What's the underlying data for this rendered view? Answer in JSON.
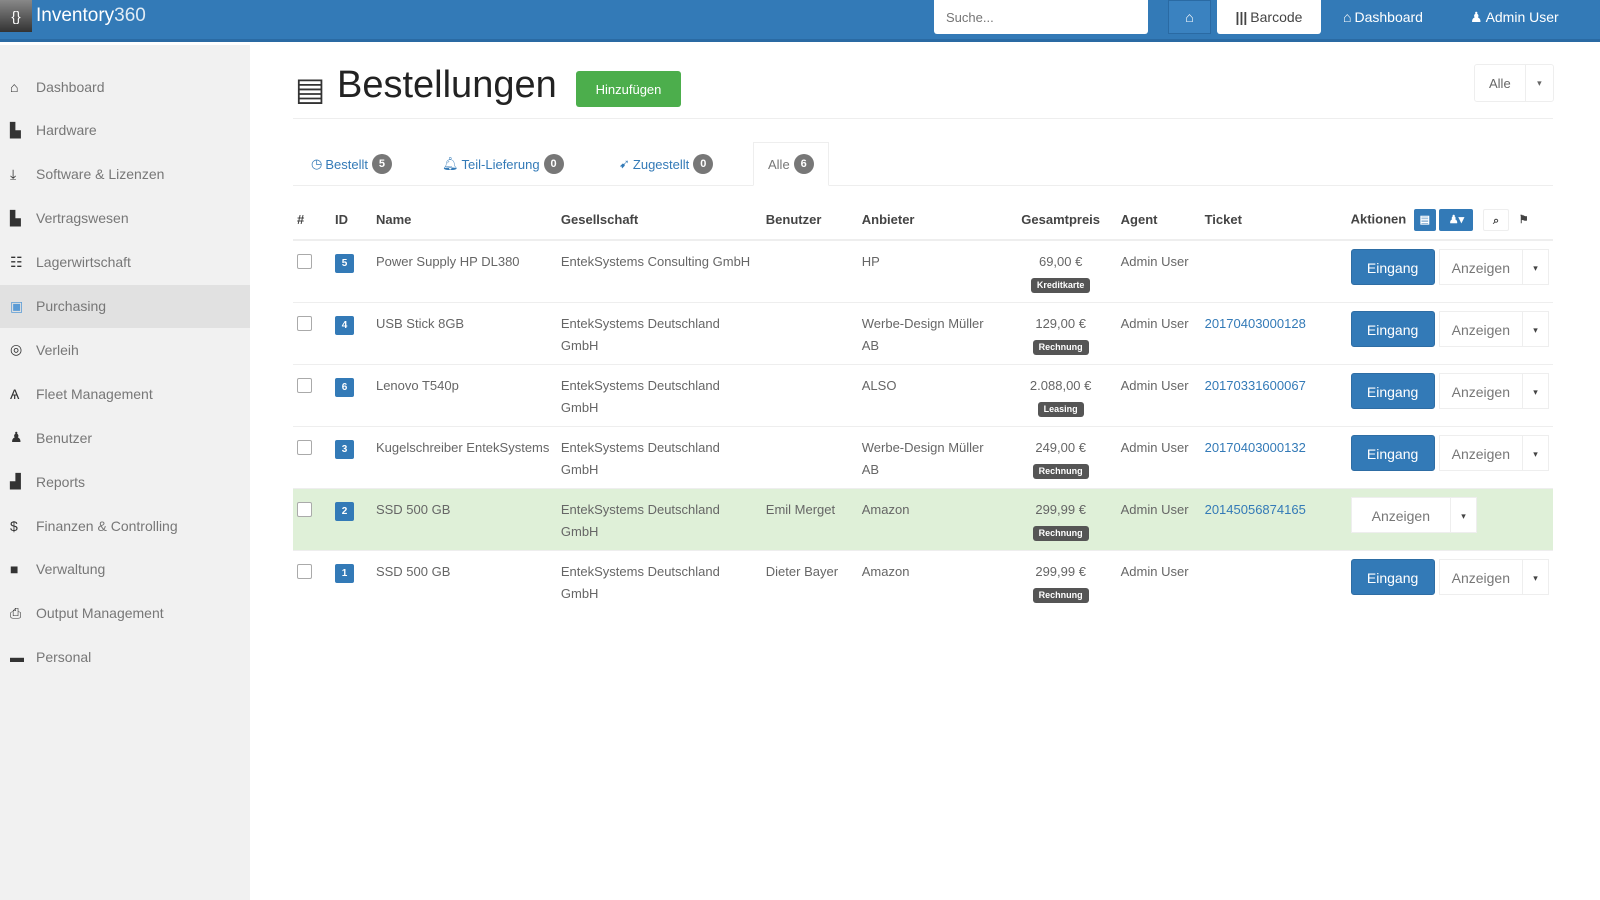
{
  "app": {
    "name": "Inventory",
    "name_suffix": "360",
    "logo_glyph": "{}"
  },
  "topbar": {
    "search_placeholder": "Suche...",
    "home_icon": "⌂",
    "barcode_label": "Barcode",
    "dashboard_label": "Dashboard",
    "user_label": "Admin User"
  },
  "sidebar": {
    "items": [
      {
        "label": "Dashboard",
        "icon": "home-icon",
        "glyph": "⌂"
      },
      {
        "label": "Hardware",
        "icon": "hardware-icon",
        "glyph": "▙"
      },
      {
        "label": "Software & Lizenzen",
        "icon": "download-icon",
        "glyph": "⤓"
      },
      {
        "label": "Vertragswesen",
        "icon": "document-icon",
        "glyph": "▙"
      },
      {
        "label": "Lagerwirtschaft",
        "icon": "list-icon",
        "glyph": "☷"
      },
      {
        "label": "Purchasing",
        "icon": "purchasing-icon",
        "glyph": "▣",
        "active": true
      },
      {
        "label": "Verleih",
        "icon": "target-icon",
        "glyph": "◎"
      },
      {
        "label": "Fleet Management",
        "icon": "binoculars-icon",
        "glyph": "Ѧ"
      },
      {
        "label": "Benutzer",
        "icon": "user-icon",
        "glyph": "♟"
      },
      {
        "label": "Reports",
        "icon": "chart-icon",
        "glyph": "▟"
      },
      {
        "label": "Finanzen & Controlling",
        "icon": "dollar-icon",
        "glyph": "$"
      },
      {
        "label": "Verwaltung",
        "icon": "briefcase-icon",
        "glyph": "■"
      },
      {
        "label": "Output Management",
        "icon": "printer-icon",
        "glyph": "⎙"
      },
      {
        "label": "Personal",
        "icon": "suitcase-icon",
        "glyph": "▬"
      }
    ]
  },
  "page": {
    "title": "Bestellungen",
    "add_label": "Hinzufügen",
    "filter_label": "Alle",
    "filter_caret": "▾"
  },
  "tabs": [
    {
      "label": "Bestellt",
      "icon": "clock-icon",
      "glyph": "◷",
      "count": "5"
    },
    {
      "label": "Teil-Lieferung",
      "icon": "bell-icon",
      "glyph": "🔔︎",
      "count": "0"
    },
    {
      "label": "Zugestellt",
      "icon": "plane-icon",
      "glyph": "➹",
      "count": "0"
    },
    {
      "label": "Alle",
      "count": "6",
      "active": true
    }
  ],
  "table": {
    "headers": {
      "num": "#",
      "id": "ID",
      "name": "Name",
      "company": "Gesellschaft",
      "user": "Benutzer",
      "vendor": "Anbieter",
      "total": "Gesamtpreis",
      "agent": "Agent",
      "ticket": "Ticket",
      "actions": "Aktionen"
    },
    "action_labels": {
      "receive": "Eingang",
      "show": "Anzeigen"
    },
    "rows": [
      {
        "id": "5",
        "name": "Power Supply HP DL380",
        "company": "EntekSystems Consulting GmbH",
        "user": "",
        "vendor": "HP",
        "price": "69,00 €",
        "payment": "Kreditkarte",
        "agent": "Admin User",
        "ticket": "",
        "receive": true
      },
      {
        "id": "4",
        "name": "USB Stick 8GB",
        "company": "EntekSystems Deutschland GmbH",
        "user": "",
        "vendor": "Werbe-Design Müller AB",
        "price": "129,00 €",
        "payment": "Rechnung",
        "agent": "Admin User",
        "ticket": "20170403000128",
        "receive": true
      },
      {
        "id": "6",
        "name": "Lenovo T540p",
        "company": "EntekSystems Deutschland GmbH",
        "user": "",
        "vendor": "ALSO",
        "price": "2.088,00 €",
        "payment": "Leasing",
        "agent": "Admin User",
        "ticket": "20170331600067",
        "receive": true
      },
      {
        "id": "3",
        "name": "Kugelschreiber EntekSystems",
        "company": "EntekSystems Deutschland GmbH",
        "user": "",
        "vendor": "Werbe-Design Müller AB",
        "price": "249,00 €",
        "payment": "Rechnung",
        "agent": "Admin User",
        "ticket": "20170403000132",
        "receive": true
      },
      {
        "id": "2",
        "name": "SSD 500 GB",
        "company": "EntekSystems Deutschland GmbH",
        "user": "Emil Merget",
        "vendor": "Amazon",
        "price": "299,99 €",
        "payment": "Rechnung",
        "agent": "Admin User",
        "ticket": "20145056874165",
        "receive": false,
        "highlight": true
      },
      {
        "id": "1",
        "name": "SSD 500 GB",
        "company": "EntekSystems Deutschland GmbH",
        "user": "Dieter Bayer",
        "vendor": "Amazon",
        "price": "299,99 €",
        "payment": "Rechnung",
        "agent": "Admin User",
        "ticket": "",
        "receive": true
      }
    ]
  },
  "colors": {
    "primary": "#337ab7",
    "success": "#4cae4c",
    "row_highlight": "#dff0d8"
  }
}
